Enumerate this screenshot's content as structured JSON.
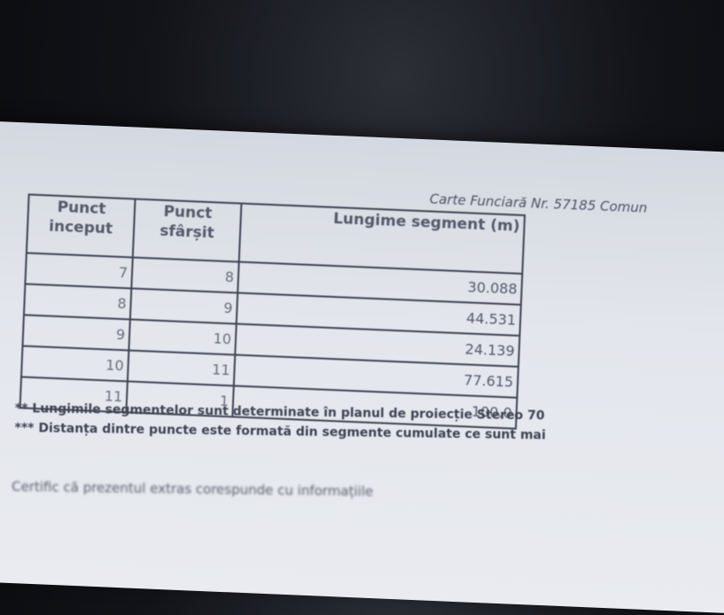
{
  "header": {
    "title": "Carte Funciară Nr. 57185 Comun"
  },
  "table": {
    "columns": [
      "Punct inceput",
      "Punct sfârșit",
      "Lungime segment (m)"
    ],
    "rows": [
      [
        7,
        8,
        "30.088"
      ],
      [
        8,
        9,
        "44.531"
      ],
      [
        9,
        10,
        "24.139"
      ],
      [
        10,
        11,
        "77.615"
      ],
      [
        11,
        1,
        "100.0"
      ]
    ]
  },
  "notes": [
    "** Lungimile segmentelor sunt determinate în planul de proiecție Stereo 70",
    "*** Distanța dintre puncte este formată din segmente cumulate ce sunt mai"
  ],
  "footer": {
    "text": "Certific că prezentul extras corespunde cu informațiile"
  }
}
